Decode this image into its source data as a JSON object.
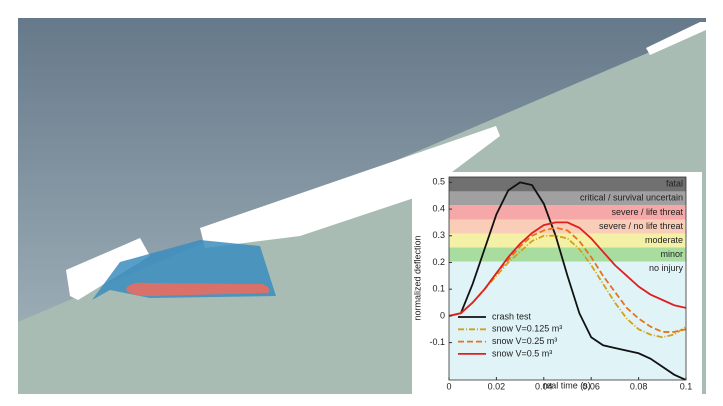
{
  "chart_data": {
    "type": "line",
    "x_label": "real time (s)",
    "y_label": "normalized deflection",
    "xlim": [
      0,
      0.1
    ],
    "xticks": [
      0,
      0.02,
      0.04,
      0.06,
      0.08,
      0.1
    ],
    "ylim": [
      -0.24,
      0.52
    ],
    "yticks": [
      -0.1,
      0,
      0.1,
      0.2,
      0.3,
      0.4,
      0.5
    ],
    "bands": [
      {
        "label": "fatal",
        "from": 0.466,
        "to": 0.52,
        "color": "#707070"
      },
      {
        "label": "critical / survival uncertain",
        "from": 0.414,
        "to": 0.466,
        "color": "#a0a0a0"
      },
      {
        "label": "severe / life threat",
        "from": 0.361,
        "to": 0.414,
        "color": "#f6a8a8"
      },
      {
        "label": "severe / no life threat",
        "from": 0.308,
        "to": 0.361,
        "color": "#f9cdb8"
      },
      {
        "label": "moderate",
        "from": 0.256,
        "to": 0.308,
        "color": "#f4f0a6"
      },
      {
        "label": "minor",
        "from": 0.203,
        "to": 0.256,
        "color": "#a9dda0"
      },
      {
        "label": "no injury",
        "from": -0.24,
        "to": 0.203,
        "color": "#e0f3f7"
      }
    ],
    "x": [
      0,
      0.005,
      0.01,
      0.015,
      0.02,
      0.025,
      0.03,
      0.035,
      0.04,
      0.045,
      0.05,
      0.055,
      0.06,
      0.065,
      0.07,
      0.075,
      0.08,
      0.085,
      0.09,
      0.095,
      0.1
    ],
    "series": [
      {
        "name": "crash test",
        "color": "#111111",
        "dash": "none",
        "values": [
          0,
          0.01,
          0.12,
          0.25,
          0.38,
          0.47,
          0.5,
          0.49,
          0.42,
          0.3,
          0.15,
          0.01,
          -0.08,
          -0.11,
          -0.12,
          -0.13,
          -0.14,
          -0.16,
          -0.19,
          -0.22,
          -0.24
        ]
      },
      {
        "name": "snow V=0.125 m³",
        "color": "#d4a017",
        "dash": "6,2,1,2",
        "values": [
          0,
          0.01,
          0.05,
          0.1,
          0.15,
          0.2,
          0.24,
          0.28,
          0.3,
          0.3,
          0.29,
          0.25,
          0.19,
          0.12,
          0.05,
          -0.01,
          -0.05,
          -0.07,
          -0.08,
          -0.07,
          -0.04
        ]
      },
      {
        "name": "snow V=0.25 m³",
        "color": "#e8731a",
        "dash": "6,3",
        "values": [
          0,
          0.01,
          0.05,
          0.1,
          0.16,
          0.21,
          0.26,
          0.3,
          0.32,
          0.33,
          0.32,
          0.28,
          0.22,
          0.15,
          0.09,
          0.03,
          -0.01,
          -0.04,
          -0.06,
          -0.06,
          -0.05
        ]
      },
      {
        "name": "snow V=0.5 m³",
        "color": "#e02020",
        "dash": "none",
        "values": [
          0,
          0.01,
          0.05,
          0.1,
          0.16,
          0.22,
          0.27,
          0.31,
          0.34,
          0.35,
          0.35,
          0.33,
          0.29,
          0.24,
          0.19,
          0.15,
          0.11,
          0.08,
          0.06,
          0.04,
          0.03
        ]
      }
    ]
  }
}
